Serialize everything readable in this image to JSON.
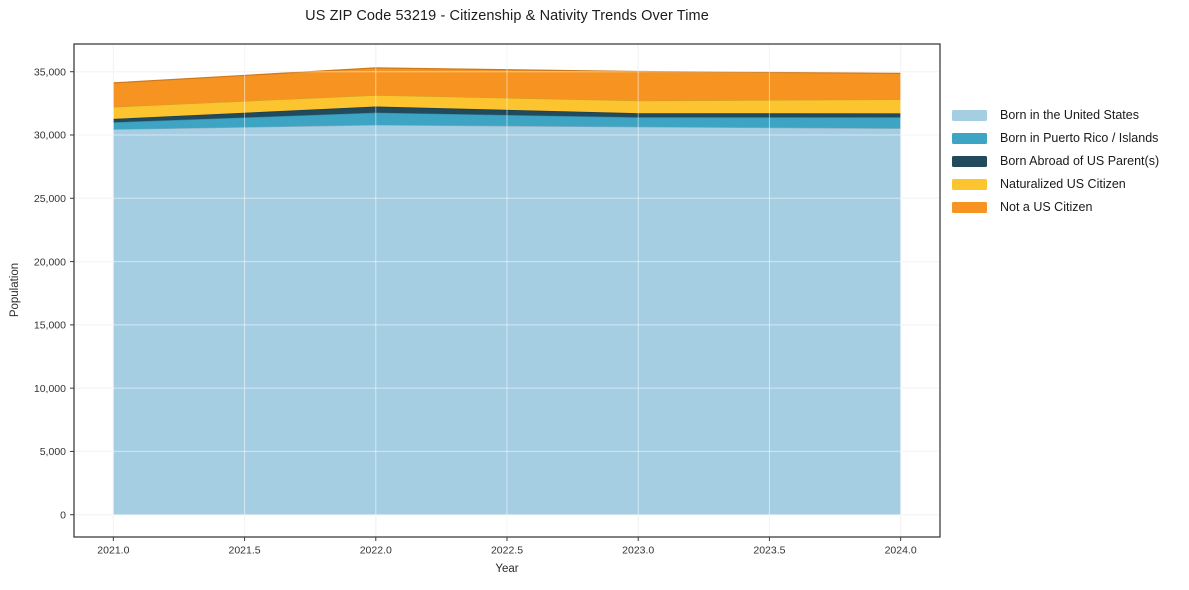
{
  "title": "US ZIP Code 53219 - Citizenship & Nativity Trends Over Time",
  "chart_data": {
    "type": "area",
    "stacked": true,
    "title": "US ZIP Code 53219 - Citizenship & Nativity Trends Over Time",
    "xlabel": "Year",
    "ylabel": "Population",
    "x": [
      2021,
      2022,
      2023,
      2024
    ],
    "series": [
      {
        "name": "Born in the United States",
        "color": "#A6CEE3",
        "values": [
          30450,
          30800,
          30650,
          30530
        ]
      },
      {
        "name": "Born in Puerto Rico / Islands",
        "color": "#3DA5C3",
        "values": [
          550,
          970,
          750,
          870
        ]
      },
      {
        "name": "Born Abroad of US Parent(s)",
        "color": "#214A5C",
        "values": [
          270,
          480,
          320,
          310
        ]
      },
      {
        "name": "Naturalized US Citizen",
        "color": "#FCC42E",
        "values": [
          950,
          900,
          1000,
          1100
        ]
      },
      {
        "name": "Not a US Citizen",
        "color": "#F79421",
        "values": [
          1900,
          2150,
          2300,
          2060
        ]
      }
    ],
    "totals": [
      34120,
      35300,
      35020,
      34870
    ],
    "x_tick_labels": [
      "2021.0",
      "2021.5",
      "2022.0",
      "2022.5",
      "2023.0",
      "2023.5",
      "2024.0"
    ],
    "x_tick_values": [
      2021,
      2021.5,
      2022,
      2022.5,
      2023,
      2023.5,
      2024
    ],
    "y_tick_labels": [
      "0",
      "5,000",
      "10,000",
      "15,000",
      "20,000",
      "25,000",
      "30,000",
      "35,000"
    ],
    "y_tick_values": [
      0,
      5000,
      10000,
      15000,
      20000,
      25000,
      30000,
      35000
    ],
    "xlim": [
      2020.85,
      2024.15
    ],
    "ylim": [
      -1760,
      37190
    ],
    "grid": true,
    "legend_position": "right-outside",
    "colors": {
      "grid_base": "#EBEBEB",
      "grid_overlay": "rgba(255,255,255,0.5)",
      "spine": "#2E2E2E",
      "tick": "#3A3A3A"
    }
  }
}
